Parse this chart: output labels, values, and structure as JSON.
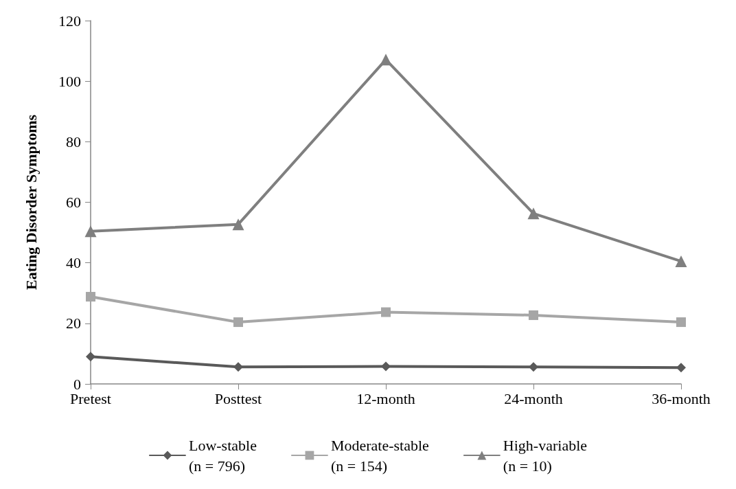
{
  "chart_data": {
    "type": "line",
    "ylabel": "Eating Disorder Symptoms",
    "categories": [
      "Pretest",
      "Posttest",
      "12-month",
      "24-month",
      "36-month"
    ],
    "series": [
      {
        "name": "Low-stable\n(n = 796)",
        "color": "#595959",
        "marker": "diamond",
        "values": [
          9.0,
          5.6,
          5.8,
          5.6,
          5.4
        ]
      },
      {
        "name": "Moderate-stable\n(n = 154)",
        "color": "#a6a6a6",
        "marker": "square",
        "values": [
          28.8,
          20.4,
          23.7,
          22.7,
          20.4
        ]
      },
      {
        "name": "High-variable\n(n = 10)",
        "color": "#7f7f7f",
        "marker": "triangle",
        "values": [
          50.4,
          52.7,
          107.1,
          56.3,
          40.5
        ]
      }
    ],
    "ylim": [
      0,
      120
    ],
    "yticks": [
      0,
      20,
      40,
      60,
      80,
      100,
      120
    ],
    "grid": false,
    "legend": "bottom",
    "line_style": "solid"
  }
}
